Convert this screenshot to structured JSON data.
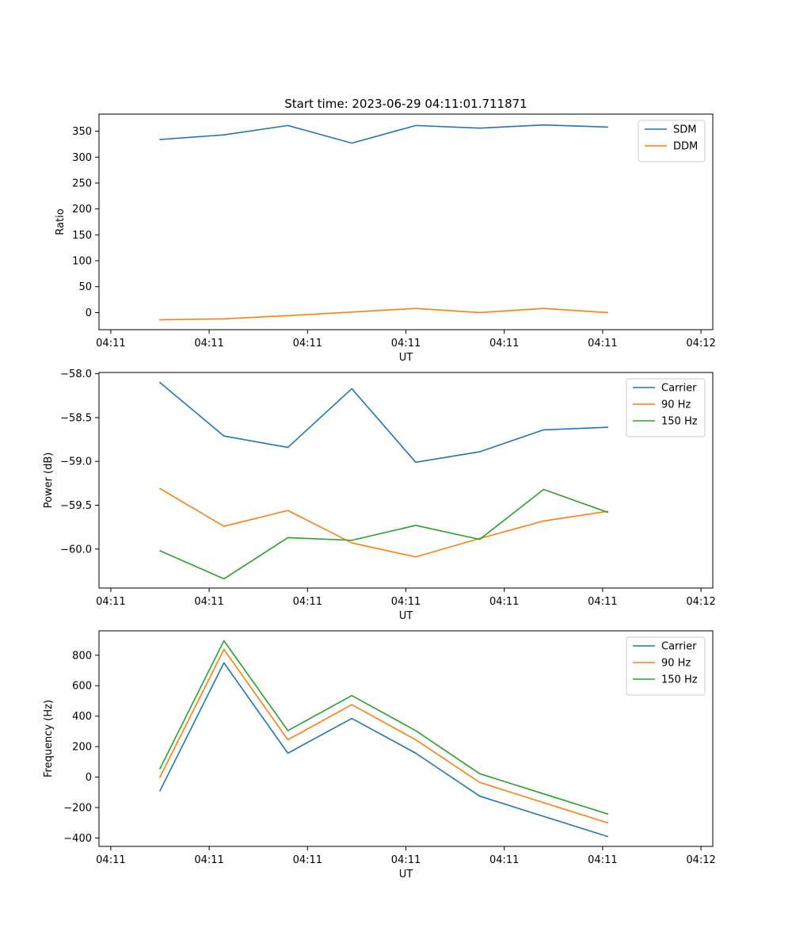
{
  "figure_title": "Start time: 2023-06-29 04:11:01.711871",
  "colors": {
    "blue": "#1f77b4",
    "orange": "#ff7f0e",
    "green": "#2ca02c"
  },
  "chart_data": [
    {
      "type": "line",
      "title": "Start time: 2023-06-29 04:11:01.711871",
      "xlabel": "UT",
      "ylabel": "Ratio",
      "x_tick_labels": [
        "04:11",
        "04:11",
        "04:11",
        "04:11",
        "04:11",
        "04:11",
        "04:12"
      ],
      "x_index": [
        0.5,
        1.15,
        1.8,
        2.45,
        3.1,
        3.75,
        4.4,
        5.05
      ],
      "xlim": [
        -0.12,
        6.12
      ],
      "ylim": [
        -33,
        383
      ],
      "y_ticks": [
        0,
        50,
        100,
        150,
        200,
        250,
        300,
        350
      ],
      "legend": "upper-right",
      "grid": false,
      "series": [
        {
          "name": "SDM",
          "color": "#1f77b4",
          "values": [
            334,
            343,
            361,
            327,
            361,
            356,
            362,
            358
          ]
        },
        {
          "name": "DDM",
          "color": "#ff7f0e",
          "values": [
            -14,
            -12,
            -6,
            1,
            8,
            0,
            8,
            0
          ]
        }
      ]
    },
    {
      "type": "line",
      "title": "",
      "xlabel": "UT",
      "ylabel": "Power (dB)",
      "x_tick_labels": [
        "04:11",
        "04:11",
        "04:11",
        "04:11",
        "04:11",
        "04:11",
        "04:12"
      ],
      "x_index": [
        0.5,
        1.15,
        1.8,
        2.45,
        3.1,
        3.75,
        4.4,
        5.05
      ],
      "xlim": [
        -0.12,
        6.12
      ],
      "ylim": [
        -60.445,
        -57.985
      ],
      "y_ticks": [
        -60.0,
        -59.5,
        -59.0,
        -58.5,
        -58.0
      ],
      "y_tick_labels": [
        "−60.0",
        "−59.5",
        "−59.0",
        "−58.5",
        "−58.0"
      ],
      "legend": "upper-right",
      "grid": false,
      "series": [
        {
          "name": "Carrier",
          "color": "#1f77b4",
          "values": [
            -58.1,
            -58.71,
            -58.84,
            -58.17,
            -59.01,
            -58.89,
            -58.64,
            -58.61
          ]
        },
        {
          "name": "90 Hz",
          "color": "#ff7f0e",
          "values": [
            -59.31,
            -59.74,
            -59.56,
            -59.93,
            -60.09,
            -59.88,
            -59.68,
            -59.57
          ]
        },
        {
          "name": "150 Hz",
          "color": "#2ca02c",
          "values": [
            -60.02,
            -60.34,
            -59.87,
            -59.9,
            -59.73,
            -59.89,
            -59.32,
            -59.58
          ]
        }
      ]
    },
    {
      "type": "line",
      "title": "",
      "xlabel": "UT",
      "ylabel": "Frequency (Hz)",
      "x_tick_labels": [
        "04:11",
        "04:11",
        "04:11",
        "04:11",
        "04:11",
        "04:11",
        "04:12"
      ],
      "x_index": [
        0.5,
        1.15,
        1.8,
        2.45,
        3.1,
        3.75,
        4.4,
        5.05
      ],
      "xlim": [
        -0.12,
        6.12
      ],
      "ylim": [
        -455,
        960
      ],
      "y_ticks": [
        -400,
        -200,
        0,
        200,
        400,
        600,
        800
      ],
      "y_tick_labels": [
        "−400",
        "−200",
        "0",
        "200",
        "400",
        "600",
        "800"
      ],
      "legend": "upper-right",
      "grid": false,
      "series": [
        {
          "name": "Carrier",
          "color": "#1f77b4",
          "values": [
            -90,
            750,
            157,
            385,
            157,
            -125,
            -258,
            -390
          ]
        },
        {
          "name": "90 Hz",
          "color": "#ff7f0e",
          "values": [
            0,
            838,
            245,
            475,
            245,
            -35,
            -168,
            -300
          ]
        },
        {
          "name": "150 Hz",
          "color": "#2ca02c",
          "values": [
            55,
            895,
            305,
            535,
            305,
            22,
            -110,
            -242
          ]
        }
      ]
    }
  ]
}
